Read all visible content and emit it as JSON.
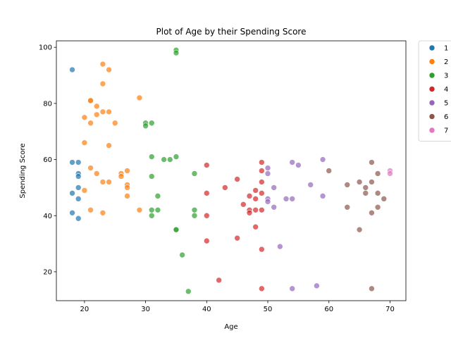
{
  "chart_data": {
    "type": "scatter",
    "title": "Plot of Age by their Spending Score",
    "xlabel": "Age",
    "ylabel": "Spending Score",
    "xlim": [
      15.4,
      72.6
    ],
    "ylim": [
      9.7,
      102.3
    ],
    "xticks": [
      20,
      30,
      40,
      50,
      60,
      70
    ],
    "yticks": [
      20,
      40,
      60,
      80,
      100
    ],
    "grid": false,
    "legend_placement": "outside-top-right",
    "point_alpha": 0.7,
    "series": [
      {
        "color": "#1f77b4",
        "points": [
          [
            18,
            92
          ],
          [
            18,
            59
          ],
          [
            18,
            48
          ],
          [
            18,
            41
          ],
          [
            19,
            59
          ],
          [
            19,
            55
          ],
          [
            19,
            54
          ],
          [
            19,
            50
          ],
          [
            19,
            46
          ],
          [
            19,
            39
          ]
        ]
      },
      {
        "color": "#ff7f0e",
        "points": [
          [
            20,
            75
          ],
          [
            20,
            66
          ],
          [
            20,
            49
          ],
          [
            21,
            81
          ],
          [
            21,
            81
          ],
          [
            21,
            73
          ],
          [
            21,
            57
          ],
          [
            21,
            42
          ],
          [
            22,
            79
          ],
          [
            22,
            76
          ],
          [
            22,
            55
          ],
          [
            23,
            94
          ],
          [
            23,
            87
          ],
          [
            23,
            77
          ],
          [
            23,
            52
          ],
          [
            23,
            41
          ],
          [
            24,
            92
          ],
          [
            24,
            77
          ],
          [
            24,
            65
          ],
          [
            24,
            52
          ],
          [
            25,
            73
          ],
          [
            26,
            55
          ],
          [
            26,
            54
          ],
          [
            27,
            56
          ],
          [
            27,
            51
          ],
          [
            27,
            50
          ],
          [
            27,
            47
          ],
          [
            29,
            82
          ],
          [
            29,
            42
          ]
        ]
      },
      {
        "color": "#2ca02c",
        "points": [
          [
            30,
            73
          ],
          [
            30,
            72
          ],
          [
            31,
            73
          ],
          [
            31,
            61
          ],
          [
            31,
            54
          ],
          [
            31,
            42
          ],
          [
            31,
            40
          ],
          [
            32,
            47
          ],
          [
            32,
            42
          ],
          [
            33,
            60
          ],
          [
            34,
            60
          ],
          [
            35,
            99
          ],
          [
            35,
            98
          ],
          [
            35,
            61
          ],
          [
            35,
            35
          ],
          [
            35,
            35
          ],
          [
            36,
            26
          ],
          [
            37,
            13
          ],
          [
            38,
            55
          ],
          [
            38,
            42
          ],
          [
            38,
            40
          ]
        ]
      },
      {
        "color": "#d62728",
        "points": [
          [
            40,
            58
          ],
          [
            40,
            48
          ],
          [
            40,
            40
          ],
          [
            40,
            31
          ],
          [
            42,
            17
          ],
          [
            43,
            50
          ],
          [
            45,
            53
          ],
          [
            45,
            32
          ],
          [
            46,
            44
          ],
          [
            47,
            47
          ],
          [
            47,
            42
          ],
          [
            47,
            41
          ],
          [
            48,
            49
          ],
          [
            48,
            46
          ],
          [
            48,
            42
          ],
          [
            48,
            36
          ],
          [
            49,
            59
          ],
          [
            49,
            56
          ],
          [
            49,
            52
          ],
          [
            49,
            48
          ],
          [
            49,
            42
          ],
          [
            49,
            28
          ],
          [
            49,
            14
          ]
        ]
      },
      {
        "color": "#9467bd",
        "points": [
          [
            50,
            57
          ],
          [
            50,
            55
          ],
          [
            50,
            46
          ],
          [
            50,
            45
          ],
          [
            51,
            50
          ],
          [
            51,
            43
          ],
          [
            52,
            29
          ],
          [
            53,
            46
          ],
          [
            54,
            59
          ],
          [
            54,
            46
          ],
          [
            54,
            14
          ],
          [
            55,
            58
          ],
          [
            57,
            51
          ],
          [
            58,
            15
          ],
          [
            59,
            60
          ],
          [
            59,
            47
          ]
        ]
      },
      {
        "color": "#8c564b",
        "points": [
          [
            60,
            56
          ],
          [
            63,
            51
          ],
          [
            63,
            43
          ],
          [
            65,
            52
          ],
          [
            65,
            35
          ],
          [
            66,
            50
          ],
          [
            66,
            48
          ],
          [
            67,
            59
          ],
          [
            67,
            52
          ],
          [
            67,
            41
          ],
          [
            67,
            14
          ],
          [
            68,
            55
          ],
          [
            68,
            48
          ],
          [
            68,
            43
          ],
          [
            69,
            46
          ]
        ]
      },
      {
        "color": "#e377c2",
        "points": [
          [
            70,
            56
          ],
          [
            70,
            55
          ]
        ]
      }
    ],
    "legend": [
      {
        "color": "#1f77b4",
        "label": "1"
      },
      {
        "color": "#ff7f0e",
        "label": "2"
      },
      {
        "color": "#2ca02c",
        "label": "3"
      },
      {
        "color": "#d62728",
        "label": "4"
      },
      {
        "color": "#9467bd",
        "label": "5"
      },
      {
        "color": "#8c564b",
        "label": "6"
      },
      {
        "color": "#e377c2",
        "label": "7"
      }
    ]
  }
}
